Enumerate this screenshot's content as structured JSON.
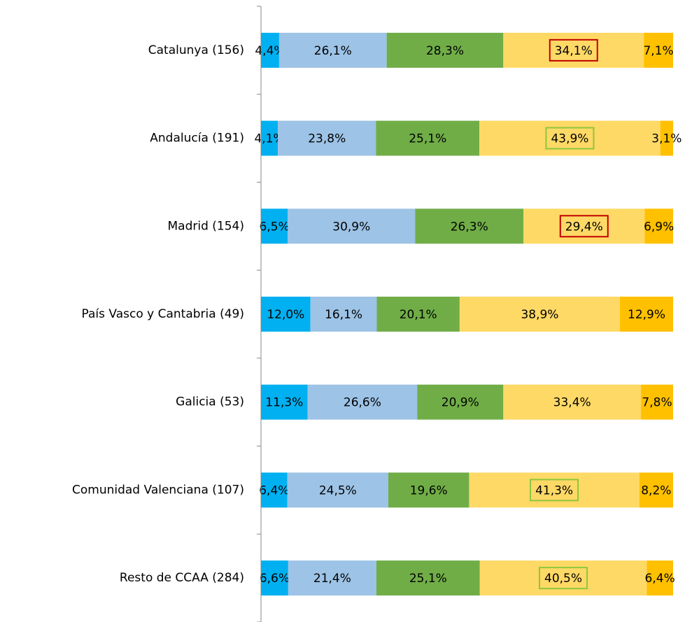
{
  "chart_data": {
    "type": "stacked_barh",
    "categories": [
      "Catalunya (156)",
      "Andalucía (191)",
      "Madrid (154)",
      "País Vasco y Cantabria (49)",
      "Galicia (53)",
      "Comunidad Valenciana (107)",
      "Resto de CCAA (284)"
    ],
    "xlim": [
      0,
      100
    ],
    "series": [
      {
        "color": "#00b0f0",
        "values": [
          4.4,
          4.1,
          6.5,
          12.0,
          11.3,
          6.4,
          6.6
        ],
        "value_labels": [
          "4,4%",
          "4,1%",
          "6,5%",
          "12,0%",
          "11,3%",
          "6,4%",
          "6,6%"
        ]
      },
      {
        "color": "#9dc3e6",
        "values": [
          26.1,
          23.8,
          30.9,
          16.1,
          26.6,
          24.5,
          21.4
        ],
        "value_labels": [
          "26,1%",
          "23,8%",
          "30,9%",
          "16,1%",
          "26,6%",
          "24,5%",
          "21,4%"
        ]
      },
      {
        "color": "#70ad47",
        "values": [
          28.3,
          25.1,
          26.3,
          20.1,
          20.9,
          19.6,
          25.1
        ],
        "value_labels": [
          "28,3%",
          "25,1%",
          "26,3%",
          "20,1%",
          "20,9%",
          "19,6%",
          "25,1%"
        ]
      },
      {
        "color": "#ffd966",
        "values": [
          34.1,
          43.9,
          29.4,
          38.9,
          33.4,
          41.3,
          40.5
        ],
        "value_labels": [
          "34,1%",
          "43,9%",
          "29,4%",
          "38,9%",
          "33,4%",
          "41,3%",
          "40,5%"
        ],
        "label_box_colors": [
          "#c00000",
          "#8cc63f",
          "#c00000",
          null,
          null,
          "#8cc63f",
          "#8cc63f"
        ]
      },
      {
        "color": "#ffc000",
        "values": [
          7.1,
          3.1,
          6.9,
          12.9,
          7.8,
          8.2,
          6.4
        ],
        "value_labels": [
          "7,1%",
          "3,1%",
          "6,9%",
          "12,9%",
          "7,8%",
          "8,2%",
          "6,4%"
        ]
      }
    ]
  }
}
